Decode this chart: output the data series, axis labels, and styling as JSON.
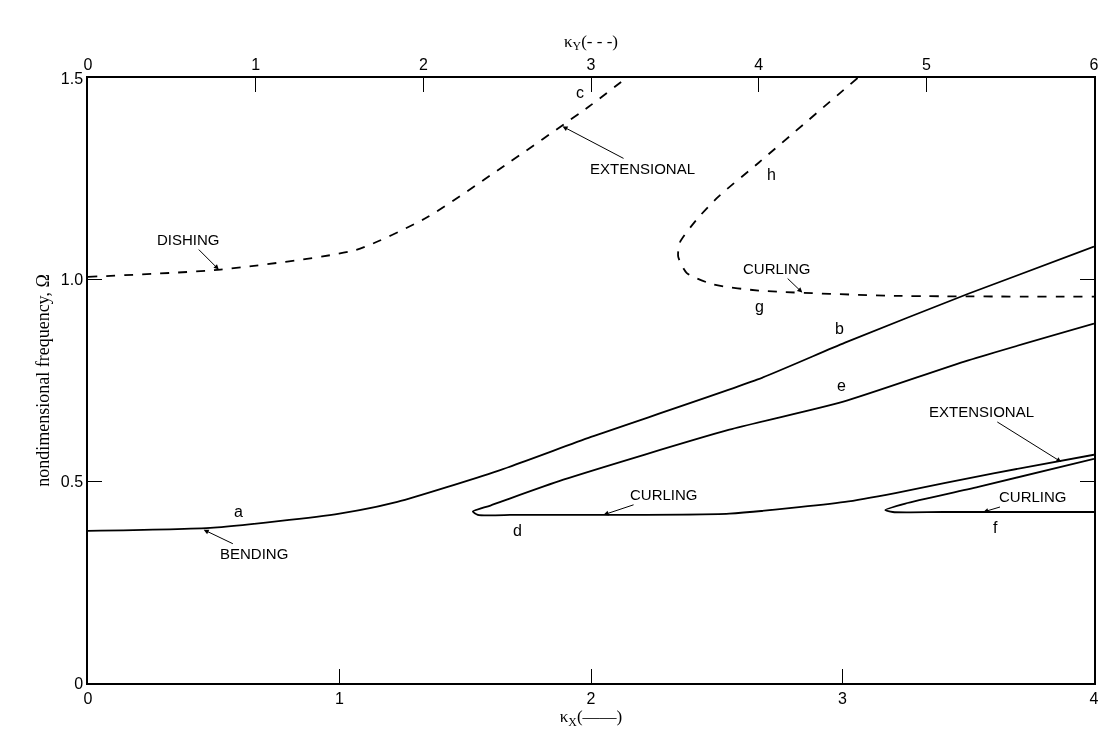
{
  "chart_data": {
    "type": "line",
    "xlabel": "κ$_{X}$(——)",
    "x2label": "κ$_{Y}$(- - -)",
    "ylabel": "nondimensional frequency, Ω",
    "xlim": [
      0,
      4
    ],
    "xticks": [
      0,
      1,
      2,
      3,
      4
    ],
    "x2lim": [
      0,
      6
    ],
    "x2ticks": [
      0,
      1,
      2,
      3,
      4,
      5,
      6
    ],
    "ylim": [
      0,
      1.5
    ],
    "yticks": [
      0,
      0.5,
      {
        "value": 1.0,
        "label": "1.0"
      },
      1.5
    ],
    "marker": "none",
    "series": [
      {
        "color": "#000000",
        "line_style": "solid",
        "x": [
          0,
          0.5,
          1.0,
          1.23,
          1.63,
          2.0,
          2.66,
          3.01,
          3.5,
          4.0
        ],
        "values": [
          0.377,
          0.385,
          0.42,
          0.449,
          0.526,
          0.61,
          0.752,
          0.844,
          0.965,
          1.082
        ]
      },
      {
        "color": "#000000",
        "line_style": "solid",
        "x": [
          4.0,
          3.5,
          3.0,
          2.55,
          1.89,
          1.6,
          1.53,
          1.55,
          1.7,
          2.0,
          2.55,
          3.01,
          3.21,
          3.6,
          4.0
        ],
        "values": [
          0.891,
          0.8,
          0.697,
          0.628,
          0.504,
          0.44,
          0.425,
          0.417,
          0.417,
          0.417,
          0.42,
          0.449,
          0.471,
          0.52,
          0.566
        ]
      },
      {
        "color": "#000000",
        "line_style": "solid",
        "x": [
          4.0,
          3.54,
          3.25,
          3.17,
          3.2,
          3.4,
          4.0
        ],
        "values": [
          0.556,
          0.486,
          0.445,
          0.429,
          0.424,
          0.424,
          0.424
        ]
      },
      {
        "color": "#000000",
        "line_style": "dashed",
        "axis": "x2",
        "x": [
          0,
          0.79,
          1.6,
          2.02,
          2.44,
          2.99,
          3.21
        ],
        "values": [
          1.007,
          1.025,
          1.074,
          1.154,
          1.27,
          1.43,
          1.5
        ]
      },
      {
        "color": "#000000",
        "line_style": "dashed",
        "axis": "x2",
        "x": [
          4.59,
          4.0,
          3.76,
          3.63,
          3.53,
          3.52,
          3.57,
          3.73,
          4.0,
          4.81,
          6.0
        ],
        "values": [
          1.5,
          1.29,
          1.206,
          1.149,
          1.092,
          1.057,
          1.017,
          0.988,
          0.973,
          0.96,
          0.958
        ]
      }
    ],
    "annotations": [
      {
        "text": "a",
        "x": 0.6,
        "y": 0.39
      },
      {
        "text": "b",
        "x": 3.01,
        "y": 0.844
      },
      {
        "text": "c",
        "x": 1.99,
        "y": 1.43
      },
      {
        "text": "d",
        "x": 1.7,
        "y": 0.417
      },
      {
        "text": "e",
        "x": 3.01,
        "y": 0.697
      },
      {
        "text": "f",
        "x": 3.6,
        "y": 0.424
      },
      {
        "text": "g",
        "x": 2.67,
        "y": 0.973
      },
      {
        "text": "h",
        "x": 2.67,
        "y": 1.29
      },
      {
        "text": "DISHING",
        "x": 0.52,
        "y": 1.025
      },
      {
        "text": "BENDING",
        "x": 0.46,
        "y": 0.38
      },
      {
        "text": "EXTENSIONAL",
        "x": 1.887,
        "y": 1.38
      },
      {
        "text": "CURLING",
        "x": 2.84,
        "y": 0.968
      },
      {
        "text": "EXTENSIONAL",
        "x": 3.87,
        "y": 0.548
      },
      {
        "text": "CURLING",
        "x": 2.05,
        "y": 0.417
      },
      {
        "text": "CURLING",
        "x": 3.56,
        "y": 0.424
      }
    ]
  }
}
